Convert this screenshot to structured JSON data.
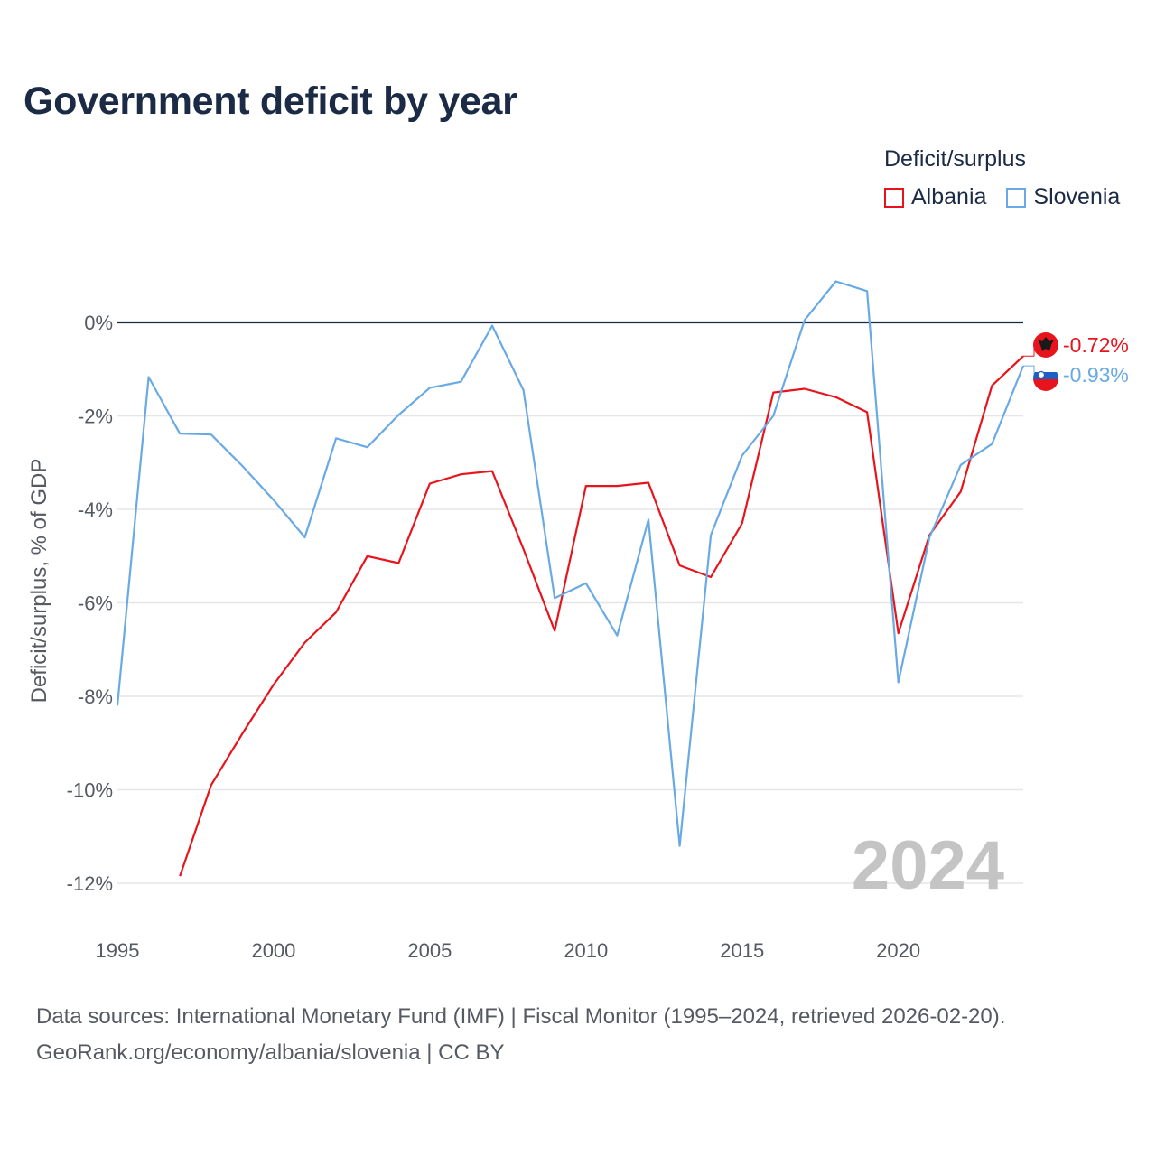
{
  "title": "Government deficit by year",
  "legend": {
    "title": "Deficit/surplus",
    "items": [
      {
        "label": "Albania",
        "color": "#e8141c"
      },
      {
        "label": "Slovenia",
        "color": "#6aaae4"
      }
    ]
  },
  "year_watermark": "2024",
  "source_line1": "Data sources: International Monetary Fund (IMF) | Fiscal Monitor (1995–2024, retrieved 2026-02-20).",
  "source_line2": "GeoRank.org/economy/albania/slovenia | CC BY",
  "chart_data": {
    "type": "line",
    "title": "Government deficit by year",
    "xlabel": "",
    "ylabel": "Deficit/surplus, % of GDP",
    "xlim": [
      1995,
      2024
    ],
    "ylim": [
      -13,
      1.5
    ],
    "x_ticks": [
      1995,
      2000,
      2005,
      2010,
      2015,
      2020
    ],
    "x_tick_labels": [
      "1995",
      "2000",
      "2005",
      "2010",
      "2015",
      "2020"
    ],
    "y_ticks": [
      0,
      -2,
      -4,
      -6,
      -8,
      -10,
      -12
    ],
    "y_tick_labels": [
      "0%",
      "-2%",
      "-4%",
      "-6%",
      "-8%",
      "-10%",
      "-12%"
    ],
    "zero_line": true,
    "legend_position": "top-right",
    "series": [
      {
        "name": "Albania",
        "color": "#e8141c",
        "x": [
          1997,
          1998,
          1999,
          2000,
          2001,
          2002,
          2003,
          2004,
          2005,
          2006,
          2007,
          2008,
          2009,
          2010,
          2011,
          2012,
          2013,
          2014,
          2015,
          2016,
          2017,
          2018,
          2019,
          2020,
          2021,
          2022,
          2023,
          2024
        ],
        "values": [
          -11.85,
          -9.9,
          -8.8,
          -7.75,
          -6.85,
          -6.2,
          -5.0,
          -5.15,
          -3.45,
          -3.25,
          -3.18,
          -4.85,
          -6.6,
          -3.5,
          -3.5,
          -3.43,
          -5.2,
          -5.45,
          -4.3,
          -1.5,
          -1.42,
          -1.6,
          -1.92,
          -6.65,
          -4.55,
          -3.62,
          -1.35,
          -0.72
        ],
        "end_label": "-0.72%"
      },
      {
        "name": "Slovenia",
        "color": "#6aaae4",
        "x": [
          1995,
          1996,
          1997,
          1998,
          1999,
          2000,
          2001,
          2002,
          2003,
          2004,
          2005,
          2006,
          2007,
          2008,
          2009,
          2010,
          2011,
          2012,
          2013,
          2014,
          2015,
          2016,
          2017,
          2018,
          2019,
          2020,
          2021,
          2022,
          2023,
          2024
        ],
        "values": [
          -8.2,
          -1.17,
          -2.38,
          -2.4,
          -3.07,
          -3.8,
          -4.6,
          -2.48,
          -2.67,
          -1.98,
          -1.4,
          -1.27,
          -0.07,
          -1.45,
          -5.9,
          -5.58,
          -6.7,
          -4.22,
          -11.2,
          -4.55,
          -2.85,
          -2.0,
          0.05,
          0.88,
          0.67,
          -7.7,
          -4.6,
          -3.05,
          -2.6,
          -0.93
        ],
        "end_label": "-0.93%"
      }
    ]
  }
}
